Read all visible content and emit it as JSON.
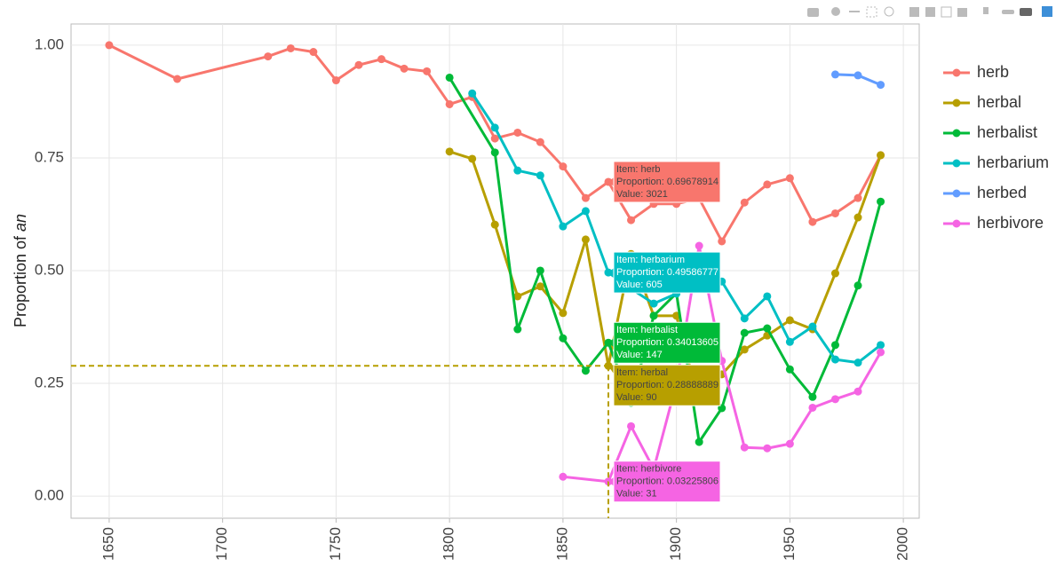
{
  "chart_data": {
    "type": "line",
    "y_label": "Proportion of",
    "y_label_italic": "an",
    "xlim": [
      1633.2,
      2007
    ],
    "ylim": [
      -0.049,
      1.047
    ],
    "xticks": [
      1650,
      1700,
      1750,
      1800,
      1850,
      1900,
      1950,
      2000
    ],
    "yticks": [
      {
        "value": 0,
        "label": "0.00"
      },
      {
        "value": 0.25,
        "label": "0.25"
      },
      {
        "value": 0.5,
        "label": "0.50"
      },
      {
        "value": 0.75,
        "label": "0.75"
      },
      {
        "value": 1,
        "label": "1.00"
      }
    ],
    "grid": true,
    "legend": "right",
    "series": [
      {
        "name": "herb",
        "color": "#F8766D",
        "x": [
          1650,
          1680,
          1720,
          1730,
          1740,
          1750,
          1760,
          1770,
          1780,
          1790,
          1800,
          1810,
          1820,
          1830,
          1840,
          1850,
          1860,
          1870,
          1880,
          1890,
          1900,
          1910,
          1920,
          1930,
          1940,
          1950,
          1960,
          1970,
          1980,
          1990
        ],
        "values": [
          1.0,
          0.925,
          0.975,
          0.993,
          0.985,
          0.922,
          0.956,
          0.969,
          0.948,
          0.942,
          0.869,
          0.885,
          0.793,
          0.806,
          0.785,
          0.731,
          0.661,
          0.69678914,
          0.612,
          0.648,
          0.648,
          0.66,
          0.565,
          0.651,
          0.691,
          0.705,
          0.608,
          0.627,
          0.661,
          0.756
        ],
        "tooltip": {
          "x": 1870,
          "item": "Item: herb",
          "proportion": "Proportion: 0.69678914",
          "value": "Value:   3021"
        }
      },
      {
        "name": "herbal",
        "color": "#B79F00",
        "spike": true,
        "x": [
          1800,
          1810,
          1820,
          1830,
          1840,
          1850,
          1860,
          1870,
          1880,
          1890,
          1900,
          1910,
          1920,
          1930,
          1940,
          1950,
          1960,
          1970,
          1980,
          1990
        ],
        "values": [
          0.764,
          0.748,
          0.602,
          0.443,
          0.465,
          0.406,
          0.569,
          0.28888889,
          0.537,
          0.4,
          0.4,
          0.209,
          0.27,
          0.325,
          0.356,
          0.39,
          0.37,
          0.494,
          0.618,
          0.756
        ],
        "tooltip": {
          "x": 1870,
          "item": "Item: herbal",
          "proportion": "Proportion: 0.28888889",
          "value": "Value:   90"
        }
      },
      {
        "name": "herbalist",
        "color": "#00BA38",
        "x": [
          1800,
          1820,
          1830,
          1840,
          1850,
          1860,
          1870,
          1880,
          1890,
          1900,
          1910,
          1920,
          1930,
          1940,
          1950,
          1960,
          1970,
          1980,
          1990
        ],
        "values": [
          0.928,
          0.762,
          0.37,
          0.5,
          0.35,
          0.278,
          0.34013605,
          0.207,
          0.4,
          0.45,
          0.12,
          0.195,
          0.362,
          0.372,
          0.281,
          0.22,
          0.335,
          0.467,
          0.653
        ],
        "tooltip": {
          "x": 1870,
          "item": "Item: herbalist",
          "proportion": "Proportion: 0.34013605",
          "value": "Value:   147"
        }
      },
      {
        "name": "herbarium",
        "color": "#00BFC4",
        "x": [
          1810,
          1820,
          1830,
          1840,
          1850,
          1860,
          1870,
          1880,
          1890,
          1900,
          1910,
          1920,
          1930,
          1940,
          1950,
          1960,
          1970,
          1980,
          1990
        ],
        "values": [
          0.893,
          0.817,
          0.722,
          0.711,
          0.598,
          0.632,
          0.49586777,
          0.46,
          0.427,
          0.449,
          0.5,
          0.476,
          0.394,
          0.443,
          0.342,
          0.376,
          0.303,
          0.296,
          0.335
        ],
        "tooltip": {
          "x": 1870,
          "item": "Item: herbarium",
          "proportion": "Proportion: 0.49586777",
          "value": "Value:   605"
        }
      },
      {
        "name": "herbed",
        "color": "#619CFF",
        "x": [
          1970,
          1980,
          1990
        ],
        "values": [
          0.935,
          0.933,
          0.912
        ]
      },
      {
        "name": "herbivore",
        "color": "#F564E3",
        "x": [
          1850,
          1870,
          1880,
          1890,
          1900,
          1910,
          1920,
          1930,
          1940,
          1950,
          1960,
          1970,
          1980,
          1990
        ],
        "values": [
          0.043,
          0.03225806,
          0.155,
          0.06,
          0.25,
          0.555,
          0.3,
          0.108,
          0.106,
          0.116,
          0.196,
          0.215,
          0.232,
          0.319
        ],
        "tooltip": {
          "x": 1870,
          "item": "Item: herbivore",
          "proportion": "Proportion: 0.03225806",
          "value": "Value:   31"
        }
      }
    ]
  }
}
